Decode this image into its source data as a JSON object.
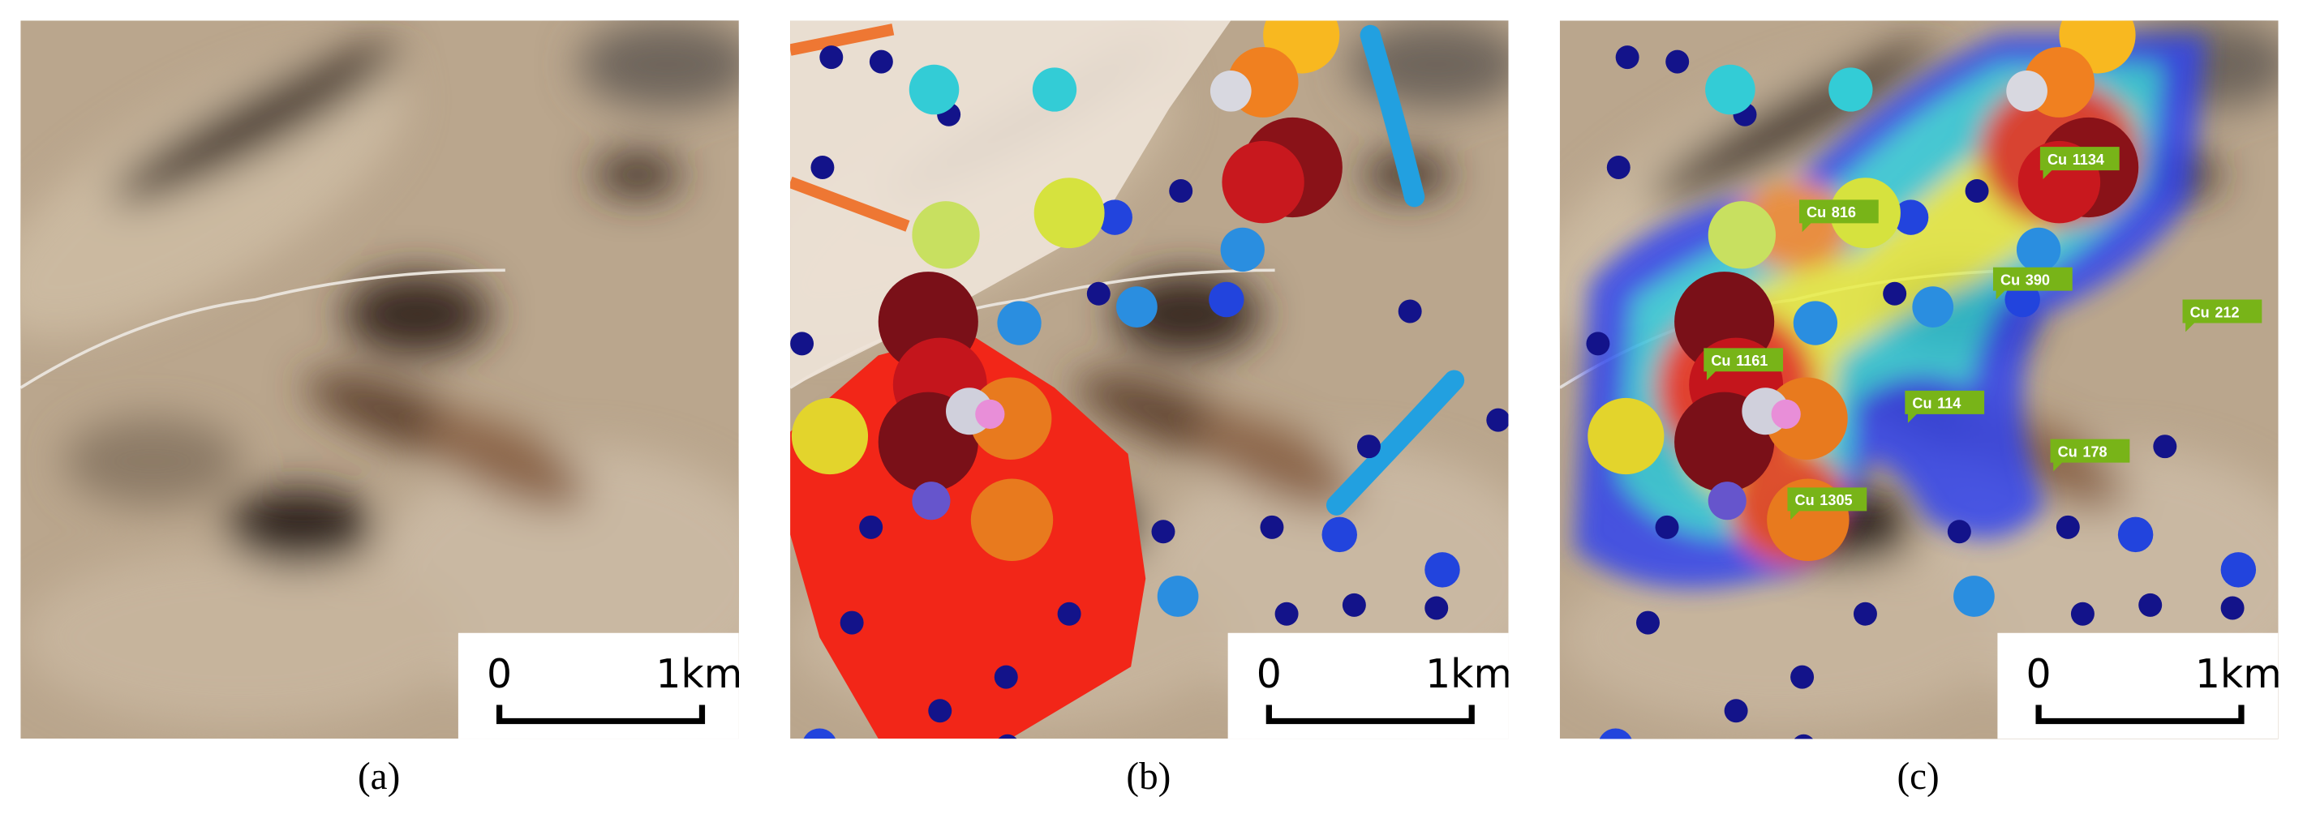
{
  "panels": [
    {
      "label": "(a)",
      "scale_bar": {
        "start": "0",
        "end": "1km"
      }
    },
    {
      "label": "(b)",
      "scale_bar": {
        "start": "0",
        "end": "1km"
      }
    },
    {
      "label": "(c)",
      "scale_bar": {
        "start": "0",
        "end": "1km"
      },
      "tags": [
        {
          "element": "Cu",
          "value": "816"
        },
        {
          "element": "Cu",
          "value": "1134"
        },
        {
          "element": "Cu",
          "value": "390"
        },
        {
          "element": "Cu",
          "value": "212"
        },
        {
          "element": "Cu",
          "value": "1161"
        },
        {
          "element": "Cu",
          "value": "114"
        },
        {
          "element": "Cu",
          "value": "178"
        },
        {
          "element": "Cu",
          "value": "1305"
        }
      ]
    }
  ]
}
